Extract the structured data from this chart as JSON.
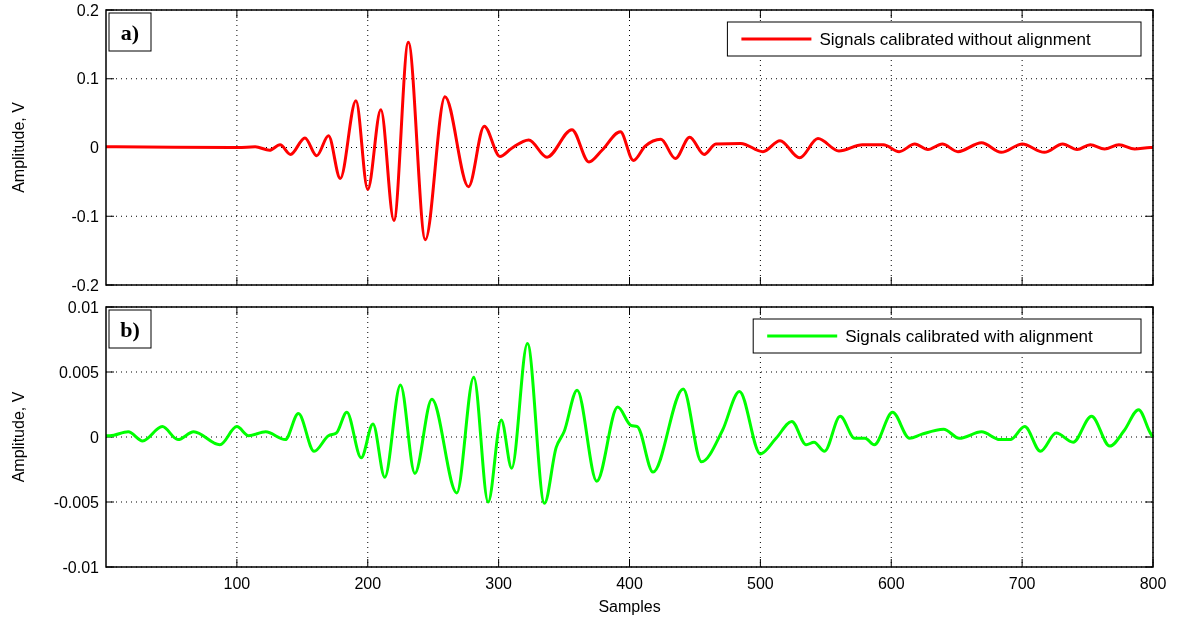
{
  "chart_data": [
    {
      "type": "line",
      "ylabel": "Amplitude, V",
      "annotations": [
        "a)"
      ],
      "xlim": [
        0,
        800
      ],
      "xticks": [
        100,
        200,
        300,
        400,
        500,
        600,
        700,
        800
      ],
      "ylim": [
        -0.2,
        0.2
      ],
      "yticks": [
        {
          "value": -0.2,
          "label": "-0.2"
        },
        {
          "value": -0.1,
          "label": "-0.1"
        },
        0,
        {
          "value": 0.1,
          "label": "0.1"
        },
        {
          "value": 0.2,
          "label": "0.2"
        }
      ],
      "grid": true,
      "legend": "top right",
      "tick_labels": "y",
      "line_style": "solid",
      "series": [
        {
          "name": "Signals calibrated without alignment",
          "color": "#ff0000",
          "x": [
            0,
            3,
            101,
            114,
            125,
            133,
            141,
            152,
            161,
            170,
            179,
            191,
            200,
            210,
            220,
            231,
            244,
            259,
            277,
            289,
            301,
            310,
            323,
            337,
            356,
            369,
            379,
            393,
            403,
            412,
            424,
            435,
            446,
            457,
            466,
            485,
            502,
            515,
            530,
            544,
            560,
            578,
            594,
            606,
            618,
            628,
            639,
            651,
            669,
            684,
            700,
            717,
            731,
            742,
            752,
            763,
            774,
            786,
            798,
            800
          ],
          "values": [
            0.001,
            0.001,
            0.0,
            0.001,
            -0.004,
            0.004,
            -0.01,
            0.014,
            -0.012,
            0.017,
            -0.045,
            0.068,
            -0.061,
            0.055,
            -0.106,
            0.153,
            -0.134,
            0.074,
            -0.057,
            0.031,
            -0.013,
            -0.001,
            0.011,
            -0.014,
            0.026,
            -0.021,
            -0.004,
            0.023,
            -0.019,
            0.002,
            0.012,
            -0.016,
            0.015,
            -0.01,
            0.005,
            0.006,
            -0.006,
            0.01,
            -0.015,
            0.013,
            -0.005,
            0.004,
            0.004,
            -0.006,
            0.005,
            -0.003,
            0.005,
            -0.006,
            0.007,
            -0.007,
            0.005,
            -0.007,
            0.005,
            -0.003,
            0.004,
            -0.002,
            0.004,
            -0.002,
            0.0,
            0.0
          ]
        }
      ]
    },
    {
      "type": "line",
      "xlabel": "Samples",
      "ylabel": "Amplitude, V",
      "annotations": [
        "b)"
      ],
      "xlim": [
        0,
        800
      ],
      "xticks": [
        100,
        200,
        300,
        400,
        500,
        600,
        700,
        800
      ],
      "ylim": [
        -0.01,
        0.01
      ],
      "yticks": [
        {
          "value": -0.01,
          "label": "-0.01"
        },
        {
          "value": -0.005,
          "label": "-0.005"
        },
        0,
        {
          "value": 0.005,
          "label": "0.005"
        },
        {
          "value": 0.01,
          "label": "0.01"
        }
      ],
      "grid": true,
      "legend": "top right",
      "line_style": "solid",
      "series": [
        {
          "name": "Signals calibrated with alignment",
          "color": "#00ff00",
          "x": [
            0,
            3,
            17,
            28,
            43,
            55,
            67,
            87,
            100,
            109,
            122,
            137,
            147,
            159,
            170,
            176,
            184,
            195,
            204,
            213,
            225,
            236,
            249,
            268,
            281,
            292,
            302,
            310,
            322,
            335,
            344,
            350,
            360,
            375,
            391,
            401,
            406,
            418,
            441,
            455,
            471,
            484,
            500,
            512,
            524,
            535,
            541,
            549,
            561,
            572,
            580,
            587,
            601,
            614,
            623,
            640,
            652,
            669,
            683,
            691,
            702,
            714,
            726,
            739,
            753,
            767,
            778,
            789,
            798,
            800
          ],
          "values": [
            0.0001,
            0.0001,
            0.0004,
            -0.0003,
            0.0008,
            -0.0002,
            0.0004,
            -0.0006,
            0.0008,
            0.0001,
            0.0004,
            -0.0002,
            0.0018,
            -0.0011,
            0.0001,
            0.0003,
            0.0019,
            -0.0016,
            0.001,
            -0.0031,
            0.004,
            -0.0028,
            0.0029,
            -0.0043,
            0.0046,
            -0.005,
            0.0013,
            -0.0024,
            0.0072,
            -0.0051,
            -0.0008,
            0.0004,
            0.0036,
            -0.0034,
            0.0023,
            0.0009,
            0.0008,
            -0.0027,
            0.0037,
            -0.0019,
            0.0005,
            0.0035,
            -0.0013,
            -0.0001,
            0.0012,
            -0.0006,
            -0.0004,
            -0.0011,
            0.0016,
            -0.0001,
            -0.0001,
            -0.0006,
            0.0019,
            -0.0001,
            0.0002,
            0.0006,
            -0.0001,
            0.0004,
            -0.0002,
            -0.0002,
            0.0008,
            -0.0011,
            0.0003,
            -0.0004,
            0.0016,
            -0.0007,
            0.0005,
            0.0021,
            0.0003,
            0.0
          ]
        }
      ]
    }
  ]
}
